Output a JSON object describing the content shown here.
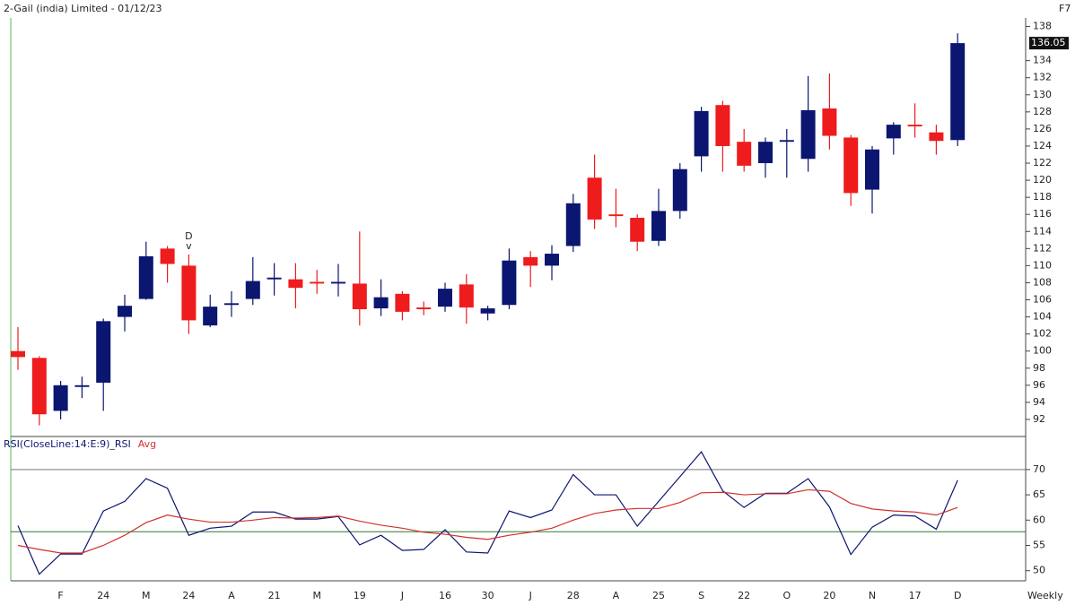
{
  "chart_data": [
    {
      "type": "candlestick",
      "title": "2-Gail (india) Limited - 01/12/23",
      "corner_label": "F7",
      "up_color": "#0b1670",
      "down_color": "#ee1c1c",
      "open": [
        100,
        99.2,
        93,
        95.8,
        96.3,
        104,
        106.1,
        112,
        110,
        103,
        105.4,
        106.1,
        108.4,
        108.4,
        108.1,
        107.9,
        107.9,
        105,
        106.7,
        105.1,
        105.2,
        107.8,
        104.4,
        105.4,
        111,
        110,
        112.3,
        120.3,
        116,
        115.6,
        112.9,
        116.4,
        122.8,
        128.8,
        124.5,
        122,
        124.5,
        122.5,
        128.4,
        125,
        118.9,
        124.9,
        126.5,
        125.6,
        124.7
      ],
      "high": [
        102.8,
        99.4,
        96.5,
        97,
        103.8,
        106.6,
        112.8,
        112.3,
        111.3,
        106.6,
        107,
        111,
        110.3,
        110.3,
        109.5,
        110.2,
        114,
        108.4,
        107,
        105.8,
        108,
        109,
        105.3,
        112,
        111.7,
        112.4,
        118.4,
        123,
        119,
        116,
        119,
        122,
        128.6,
        129.3,
        126,
        125,
        126,
        132.2,
        132.5,
        125.3,
        124,
        126.8,
        129,
        126.5,
        137.2
      ],
      "low": [
        97.8,
        91.3,
        92,
        94.5,
        93,
        102.3,
        106,
        108,
        102,
        102.8,
        104,
        105.4,
        106.5,
        105,
        106.7,
        106.4,
        103,
        104.1,
        103.6,
        104.2,
        104.6,
        103.2,
        103.6,
        104.9,
        107.5,
        108.3,
        111.6,
        114.3,
        114.5,
        111.7,
        112.3,
        115.5,
        121,
        121,
        121,
        120.3,
        120.3,
        121,
        123.6,
        117,
        116.1,
        123,
        125,
        123,
        124
      ],
      "close": [
        99.3,
        92.6,
        96,
        96,
        103.5,
        105.3,
        111.1,
        110.2,
        103.6,
        105.2,
        105.6,
        108.2,
        108.6,
        107.4,
        107.9,
        108.1,
        104.9,
        106.3,
        104.6,
        104.9,
        107.3,
        105.1,
        105,
        110.6,
        110,
        111.4,
        117.3,
        115.4,
        115.8,
        112.8,
        116.4,
        121.3,
        128.1,
        124,
        121.7,
        124.5,
        124.7,
        128.2,
        125.2,
        118.5,
        123.6,
        126.5,
        126.3,
        124.6,
        136.05
      ],
      "last_price": {
        "value": 136.05,
        "label": "136.05"
      },
      "annotation": {
        "text": "D",
        "marker": "v",
        "at_candle": 8
      },
      "ylim": [
        90,
        139
      ],
      "yticks": [
        92,
        94,
        96,
        98,
        100,
        102,
        104,
        106,
        108,
        110,
        112,
        114,
        116,
        118,
        120,
        122,
        124,
        126,
        128,
        130,
        132,
        134,
        138
      ]
    },
    {
      "type": "line",
      "x_label": "Weekly",
      "categories": [
        null,
        null,
        "F",
        null,
        "24",
        null,
        "M",
        null,
        "24",
        null,
        "A",
        null,
        "21",
        null,
        "M",
        null,
        "19",
        null,
        "J",
        null,
        "16",
        null,
        "30",
        null,
        "J",
        null,
        "28",
        null,
        "A",
        null,
        "25",
        null,
        "S",
        null,
        "22",
        null,
        "O",
        null,
        "20",
        null,
        "N",
        null,
        "17",
        null,
        "D"
      ],
      "series": [
        {
          "name": "RSI(CloseLine:14:E:9)_RSI",
          "color": "#0b1670",
          "values": [
            58.9,
            49.3,
            53.3,
            53.3,
            61.8,
            63.7,
            68.2,
            66.3,
            57,
            58.4,
            58.8,
            61.6,
            61.6,
            60.2,
            60.2,
            60.7,
            55.1,
            57,
            54,
            54.2,
            58.1,
            53.7,
            53.5,
            61.8,
            60.5,
            62,
            69,
            65,
            65,
            58.8,
            63.7,
            68.6,
            73.5,
            65.8,
            62.5,
            65.3,
            65.3,
            68.2,
            62.6,
            53.2,
            58.6,
            61,
            60.8,
            58.2,
            67.9
          ]
        },
        {
          "name": "Avg",
          "color": "#d0312d",
          "values": [
            55,
            54.2,
            53.5,
            53.5,
            55,
            57,
            59.5,
            61,
            60.2,
            59.6,
            59.6,
            60,
            60.5,
            60.4,
            60.5,
            60.8,
            59.8,
            59,
            58.4,
            57.6,
            57.2,
            56.6,
            56.2,
            57,
            57.6,
            58.4,
            60,
            61.3,
            62,
            62.3,
            62.3,
            63.5,
            65.4,
            65.5,
            65,
            65.2,
            65.2,
            66,
            65.7,
            63.3,
            62.2,
            61.8,
            61.6,
            61,
            62.5
          ]
        }
      ],
      "levels": [
        {
          "value": 70,
          "color": "#777777"
        },
        {
          "value": 57.7,
          "color": "#2a7a2a"
        }
      ],
      "ylim": [
        48,
        76
      ],
      "yticks": [
        50,
        55,
        60,
        65,
        70
      ]
    }
  ]
}
